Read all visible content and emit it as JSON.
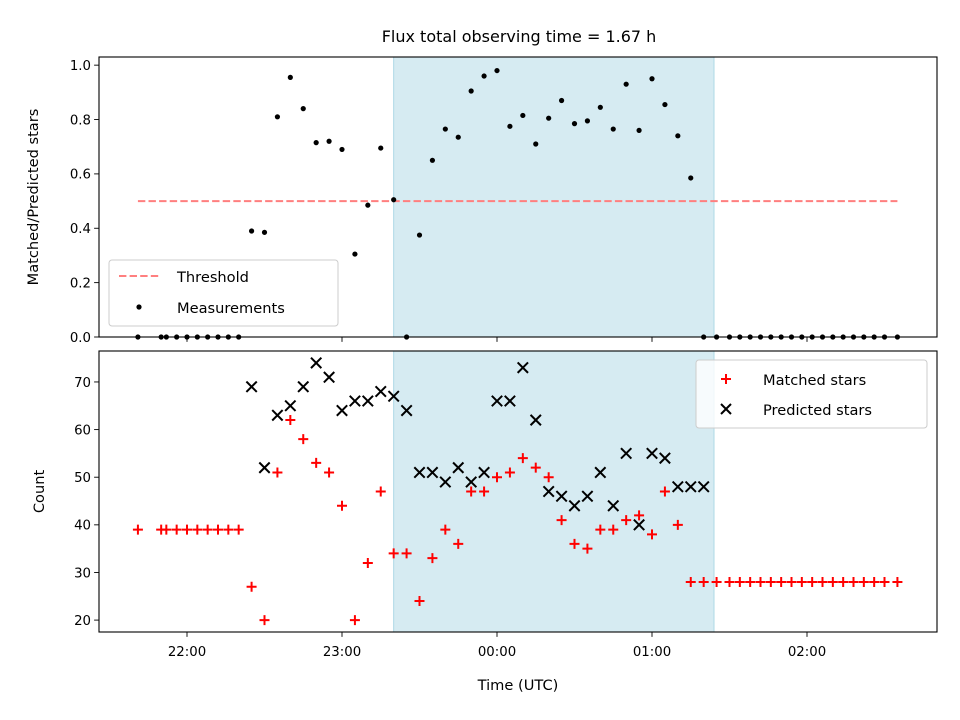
{
  "title": "Flux total observing time = 1.67 h",
  "colors": {
    "threshold": "#ff7f7f",
    "measurement": "#000000",
    "matched": "#ff0000",
    "predicted": "#000000",
    "shade": "#add8e6"
  },
  "chart_data": [
    {
      "type": "scatter",
      "ylabel": "Matched/Predicted stars",
      "ylim": [
        0,
        1.03
      ],
      "yticks": [
        0.0,
        0.2,
        0.4,
        0.6,
        0.8,
        1.0
      ],
      "ytick_labels": [
        "0.0",
        "0.2",
        "0.4",
        "0.6",
        "0.8",
        "1.0"
      ],
      "shaded_x_range": [
        "23:20",
        "01:24"
      ],
      "threshold": {
        "name": "Threshold",
        "x": [
          "21:41",
          "02:35"
        ],
        "y": 0.5
      },
      "series": [
        {
          "name": "Measurements",
          "x": [
            "21:41",
            "21:50",
            "21:52",
            "21:56",
            "22:00",
            "22:04",
            "22:08",
            "22:12",
            "22:16",
            "22:20",
            "22:25",
            "22:30",
            "22:35",
            "22:40",
            "22:45",
            "22:50",
            "22:55",
            "23:00",
            "23:05",
            "23:10",
            "23:15",
            "23:20",
            "23:25",
            "23:30",
            "23:35",
            "23:40",
            "23:45",
            "23:50",
            "23:55",
            "00:00",
            "00:05",
            "00:10",
            "00:15",
            "00:20",
            "00:25",
            "00:30",
            "00:35",
            "00:40",
            "00:45",
            "00:50",
            "00:55",
            "01:00",
            "01:05",
            "01:10",
            "01:15",
            "01:20",
            "01:25",
            "01:30",
            "01:34",
            "01:38",
            "01:42",
            "01:46",
            "01:50",
            "01:54",
            "01:58",
            "02:02",
            "02:06",
            "02:10",
            "02:14",
            "02:18",
            "02:22",
            "02:26",
            "02:30",
            "02:35"
          ],
          "y": [
            0,
            0,
            0,
            0,
            0,
            0,
            0,
            0,
            0,
            0,
            0.39,
            0.385,
            0.81,
            0.955,
            0.84,
            0.715,
            0.72,
            0.69,
            0.305,
            0.485,
            0.695,
            0.505,
            0,
            0.375,
            0.65,
            0.765,
            0.735,
            0.905,
            0.96,
            0.98,
            0.775,
            0.815,
            0.71,
            0.805,
            0.87,
            0.785,
            0.795,
            0.845,
            0.765,
            0.93,
            0.76,
            0.95,
            0.855,
            0.74,
            0.585,
            0,
            0,
            0,
            0,
            0,
            0,
            0,
            0,
            0,
            0,
            0,
            0,
            0,
            0,
            0,
            0,
            0,
            0,
            0
          ]
        }
      ]
    },
    {
      "type": "scatter",
      "xlabel": "Time (UTC)",
      "ylabel": "Count",
      "ylim": [
        17.5,
        76.5
      ],
      "yticks": [
        20,
        30,
        40,
        50,
        60,
        70
      ],
      "ytick_labels": [
        "20",
        "30",
        "40",
        "50",
        "60",
        "70"
      ],
      "xticks": [
        "22:00",
        "23:00",
        "00:00",
        "01:00",
        "02:00"
      ],
      "shaded_x_range": [
        "23:20",
        "01:24"
      ],
      "series": [
        {
          "name": "Matched stars",
          "marker": "plus",
          "x": [
            "21:41",
            "21:50",
            "21:52",
            "21:56",
            "22:00",
            "22:04",
            "22:08",
            "22:12",
            "22:16",
            "22:20",
            "22:25",
            "22:30",
            "22:35",
            "22:40",
            "22:45",
            "22:50",
            "22:55",
            "23:00",
            "23:05",
            "23:10",
            "23:15",
            "23:20",
            "23:25",
            "23:30",
            "23:35",
            "23:40",
            "23:45",
            "23:50",
            "23:55",
            "00:00",
            "00:05",
            "00:10",
            "00:15",
            "00:20",
            "00:25",
            "00:30",
            "00:35",
            "00:40",
            "00:45",
            "00:50",
            "00:55",
            "01:00",
            "01:05",
            "01:10",
            "01:15",
            "01:20",
            "01:25",
            "01:30",
            "01:34",
            "01:38",
            "01:42",
            "01:46",
            "01:50",
            "01:54",
            "01:58",
            "02:02",
            "02:06",
            "02:10",
            "02:14",
            "02:18",
            "02:22",
            "02:26",
            "02:30",
            "02:35"
          ],
          "y": [
            39,
            39,
            39,
            39,
            39,
            39,
            39,
            39,
            39,
            39,
            27,
            20,
            51,
            62,
            58,
            53,
            51,
            44,
            20,
            32,
            47,
            34,
            34,
            24,
            33,
            39,
            36,
            47,
            47,
            50,
            51,
            54,
            52,
            50,
            41,
            36,
            35,
            39,
            39,
            41,
            42,
            38,
            47,
            40,
            28,
            28,
            28,
            28,
            28,
            28,
            28,
            28,
            28,
            28,
            28,
            28,
            28,
            28,
            28,
            28,
            28,
            28,
            28,
            28
          ]
        },
        {
          "name": "Predicted stars",
          "marker": "x",
          "x": [
            "22:25",
            "22:30",
            "22:35",
            "22:40",
            "22:45",
            "22:50",
            "22:55",
            "23:00",
            "23:05",
            "23:10",
            "23:15",
            "23:20",
            "23:25",
            "23:30",
            "23:35",
            "23:40",
            "23:45",
            "23:50",
            "23:55",
            "00:00",
            "00:05",
            "00:10",
            "00:15",
            "00:20",
            "00:25",
            "00:30",
            "00:35",
            "00:40",
            "00:45",
            "00:50",
            "00:55",
            "01:00",
            "01:05",
            "01:10",
            "01:15",
            "01:20"
          ],
          "y": [
            69,
            52,
            63,
            65,
            69,
            74,
            71,
            64,
            66,
            66,
            68,
            67,
            64,
            51,
            51,
            49,
            52,
            49,
            51,
            66,
            66,
            73,
            62,
            47,
            46,
            44,
            46,
            51,
            44,
            55,
            40,
            55,
            54,
            48,
            48,
            48
          ]
        }
      ]
    }
  ]
}
